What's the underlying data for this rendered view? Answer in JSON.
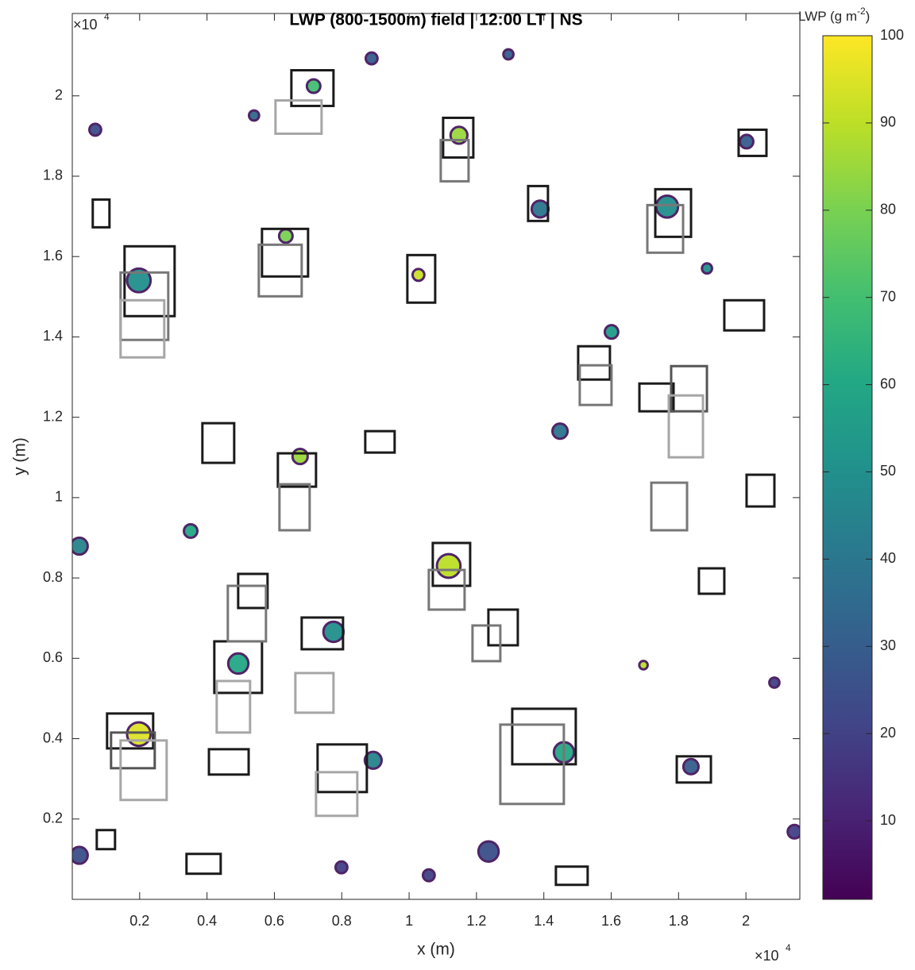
{
  "chart_data": {
    "type": "field",
    "title": "LWP (800-1500m) field | 12:00 LT | NS",
    "x_label": "x (m)",
    "y_label": "y (m)",
    "x_multiplier": {
      "base": "×10",
      "exponent": "4"
    },
    "y_multiplier": {
      "base": "×10",
      "exponent": "4"
    },
    "xlim": [
      0,
      21600
    ],
    "ylim": [
      0,
      22050
    ],
    "xticks": [
      {
        "value": 2000,
        "label": "0.2"
      },
      {
        "value": 4000,
        "label": "0.4"
      },
      {
        "value": 6000,
        "label": "0.6"
      },
      {
        "value": 8000,
        "label": "0.8"
      },
      {
        "value": 10000,
        "label": "1"
      },
      {
        "value": 12000,
        "label": "1.2"
      },
      {
        "value": 14000,
        "label": "1.4"
      },
      {
        "value": 16000,
        "label": "1.6"
      },
      {
        "value": 18000,
        "label": "1.8"
      },
      {
        "value": 20000,
        "label": "2"
      }
    ],
    "yticks": [
      {
        "value": 2000,
        "label": "0.2"
      },
      {
        "value": 4000,
        "label": "0.4"
      },
      {
        "value": 6000,
        "label": "0.6"
      },
      {
        "value": 8000,
        "label": "0.8"
      },
      {
        "value": 10000,
        "label": "1"
      },
      {
        "value": 12000,
        "label": "1.2"
      },
      {
        "value": 14000,
        "label": "1.4"
      },
      {
        "value": 16000,
        "label": "1.6"
      },
      {
        "value": 18000,
        "label": "1.8"
      },
      {
        "value": 20000,
        "label": "2"
      }
    ],
    "colorbar": {
      "label": "LWP (g m",
      "label_exponent": "-2",
      "label_close": ")",
      "colormap": "viridis",
      "clim": [
        1,
        100
      ],
      "ticks": [
        10,
        20,
        30,
        40,
        50,
        60,
        70,
        80,
        90,
        100
      ]
    },
    "blobs": {
      "x": [
        1976,
        11175,
        11481,
        6764,
        10278,
        6340,
        7165,
        1976,
        208,
        7755,
        5396,
        8887,
        12358,
        7991,
        10585,
        16009,
        18368,
        20844,
        17660,
        20019,
        4929,
        3514,
        14597,
        13889,
        16958,
        208,
        18844,
        21439,
        8934,
        14480,
        682,
        12948
      ],
      "y": [
        4113,
        8298,
        19019,
        11023,
        15544,
        16511,
        20242,
        15406,
        8792,
        6659,
        19511,
        20933,
        1191,
        796,
        599,
        14124,
        3303,
        5395,
        17242,
        18861,
        5870,
        9168,
        3659,
        17183,
        5831,
        1096,
        15705,
        1684,
        3462,
        11654,
        19157,
        21033
      ],
      "lwp": [
        95,
        90,
        85,
        85,
        92,
        80,
        70,
        50,
        45,
        50,
        35,
        30,
        25,
        20,
        20,
        55,
        30,
        20,
        50,
        30,
        60,
        60,
        60,
        40,
        90,
        25,
        50,
        20,
        45,
        40,
        25,
        30
      ],
      "size": [
        700,
        700,
        500,
        450,
        350,
        400,
        400,
        700,
        500,
        600,
        300,
        350,
        600,
        350,
        350,
        400,
        450,
        300,
        650,
        400,
        600,
        400,
        600,
        500,
        250,
        500,
        300,
        400,
        500,
        450,
        350,
        300
      ]
    },
    "boxes": [
      {
        "x": [
          1033,
          2401
        ],
        "y": [
          3757,
          4626
        ],
        "color": "#1a1a1a"
      },
      {
        "x": [
          1151,
          2448
        ],
        "y": [
          3264,
          4152
        ],
        "color": "#555555"
      },
      {
        "x": [
          1434,
          2802
        ],
        "y": [
          2474,
          3955
        ],
        "color": "#a6a6a6"
      },
      {
        "x": [
          10703,
          11812
        ],
        "y": [
          7804,
          8871
        ],
        "color": "#1a1a1a"
      },
      {
        "x": [
          10585,
          11647
        ],
        "y": [
          7212,
          8199
        ],
        "color": "#777777"
      },
      {
        "x": [
          1552,
          3038
        ],
        "y": [
          14517,
          16255
        ],
        "color": "#1a1a1a"
      },
      {
        "x": [
          1434,
          2849
        ],
        "y": [
          13925,
          15603
        ],
        "color": "#777777"
      },
      {
        "x": [
          1434,
          2731
        ],
        "y": [
          13490,
          14912
        ],
        "color": "#a6a6a6"
      },
      {
        "x": [
          11010,
          11906
        ],
        "y": [
          18466,
          19453
        ],
        "color": "#1a1a1a"
      },
      {
        "x": [
          10939,
          11765
        ],
        "y": [
          17873,
          18900
        ],
        "color": "#777777"
      },
      {
        "x": [
          6104,
          7236
        ],
        "y": [
          10272,
          11102
        ],
        "color": "#1a1a1a"
      },
      {
        "x": [
          6151,
          7047
        ],
        "y": [
          9187,
          10332
        ],
        "color": "#777777"
      },
      {
        "x": [
          9948,
          10774
        ],
        "y": [
          14853,
          16037
        ],
        "color": "#1a1a1a"
      },
      {
        "x": [
          5632,
          7000
        ],
        "y": [
          15504,
          16689
        ],
        "color": "#1a1a1a"
      },
      {
        "x": [
          5538,
          6811
        ],
        "y": [
          15010,
          16294
        ],
        "color": "#777777"
      },
      {
        "x": [
          6505,
          7755
        ],
        "y": [
          19749,
          20637
        ],
        "color": "#1a1a1a"
      },
      {
        "x": [
          6033,
          7401
        ],
        "y": [
          19058,
          19886
        ],
        "color": "#a6a6a6"
      },
      {
        "x": [
          13062,
          14948
        ],
        "y": [
          3362,
          4744
        ],
        "color": "#1a1a1a"
      },
      {
        "x": [
          12708,
          14594
        ],
        "y": [
          2375,
          4349
        ],
        "color": "#777777"
      },
      {
        "x": [
          7283,
          8745
        ],
        "y": [
          2671,
          3856
        ],
        "color": "#1a1a1a"
      },
      {
        "x": [
          7236,
          8462
        ],
        "y": [
          2079,
          3165
        ],
        "color": "#a6a6a6"
      },
      {
        "x": [
          3863,
          4807
        ],
        "y": [
          10865,
          11852
        ],
        "color": "#1a1a1a"
      },
      {
        "x": [
          4217,
          5632
        ],
        "y": [
          5139,
          6422
        ],
        "color": "#1a1a1a"
      },
      {
        "x": [
          4288,
          5278
        ],
        "y": [
          4152,
          5435
        ],
        "color": "#a6a6a6"
      },
      {
        "x": [
          4925,
          5797
        ],
        "y": [
          7252,
          8101
        ],
        "color": "#1a1a1a"
      },
      {
        "x": [
          4618,
          5750
        ],
        "y": [
          6422,
          7804
        ],
        "color": "#777777"
      },
      {
        "x": [
          6811,
          8038
        ],
        "y": [
          6225,
          7015
        ],
        "color": "#1a1a1a"
      },
      {
        "x": [
          6623,
          7755
        ],
        "y": [
          4646,
          5633
        ],
        "color": "#a6a6a6"
      },
      {
        "x": [
          17309,
          18370
        ],
        "y": [
          16491,
          17676
        ],
        "color": "#1a1a1a"
      },
      {
        "x": [
          17073,
          18134
        ],
        "y": [
          16096,
          17281
        ],
        "color": "#777777"
      },
      {
        "x": [
          19783,
          20609
        ],
        "y": [
          18505,
          19157
        ],
        "color": "#1a1a1a"
      },
      {
        "x": [
          16837,
          17851
        ],
        "y": [
          12148,
          12839
        ],
        "color": "#1a1a1a"
      },
      {
        "x": [
          17780,
          18842
        ],
        "y": [
          12148,
          13273
        ],
        "color": "#555555"
      },
      {
        "x": [
          17710,
          18724
        ],
        "y": [
          11003,
          12543
        ],
        "color": "#a6a6a6"
      },
      {
        "x": [
          17946,
          18960
        ],
        "y": [
          2908,
          3560
        ],
        "color": "#1a1a1a"
      },
      {
        "x": [
          20019,
          20845
        ],
        "y": [
          9779,
          10569
        ],
        "color": "#1a1a1a"
      },
      {
        "x": [
          17191,
          18252
        ],
        "y": [
          9187,
          10371
        ],
        "color": "#777777"
      },
      {
        "x": [
          14358,
          15301
        ],
        "y": [
          361,
          815
        ],
        "color": "#1a1a1a"
      },
      {
        "x": [
          15019,
          15962
        ],
        "y": [
          12938,
          13767
        ],
        "color": "#1a1a1a"
      },
      {
        "x": [
          15066,
          16009
        ],
        "y": [
          12306,
          13293
        ],
        "color": "#777777"
      },
      {
        "x": [
          4057,
          5236
        ],
        "y": [
          3106,
          3737
        ],
        "color": "#1a1a1a"
      },
      {
        "x": [
          12354,
          13227
        ],
        "y": [
          6324,
          7212
        ],
        "color": "#1a1a1a"
      },
      {
        "x": [
          11882,
          12708
        ],
        "y": [
          5929,
          6817
        ],
        "color": "#777777"
      },
      {
        "x": [
          8698,
          9570
        ],
        "y": [
          11121,
          11654
        ],
        "color": "#1a1a1a"
      },
      {
        "x": [
          727,
          1269
        ],
        "y": [
          1250,
          1724
        ],
        "color": "#1a1a1a"
      },
      {
        "x": [
          3391,
          4406
        ],
        "y": [
          638,
          1131
        ],
        "color": "#1a1a1a"
      },
      {
        "x": [
          19358,
          20538
        ],
        "y": [
          14162,
          14912
        ],
        "color": "#1a1a1a"
      },
      {
        "x": [
          18604,
          19358
        ],
        "y": [
          7607,
          8239
        ],
        "color": "#1a1a1a"
      },
      {
        "x": [
          608,
          1104
        ],
        "y": [
          16728,
          17419
        ],
        "color": "#1a1a1a"
      },
      {
        "x": [
          13533,
          14122
        ],
        "y": [
          16886,
          17755
        ],
        "color": "#1a1a1a"
      }
    ]
  }
}
